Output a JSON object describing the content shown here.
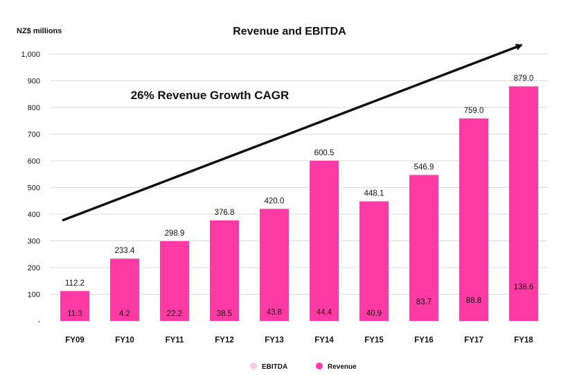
{
  "chart_data": {
    "type": "bar",
    "title": "Revenue and EBITDA",
    "unit_label": "NZ$ millions",
    "annotation": "26% Revenue Growth CAGR",
    "categories": [
      "FY09",
      "FY10",
      "FY11",
      "FY12",
      "FY13",
      "FY14",
      "FY15",
      "FY16",
      "FY17",
      "FY18"
    ],
    "ylim": [
      0,
      1000
    ],
    "yticks": [
      {
        "value": 0,
        "label": "-"
      },
      {
        "value": 100,
        "label": "100"
      },
      {
        "value": 200,
        "label": "200"
      },
      {
        "value": 300,
        "label": "300"
      },
      {
        "value": 400,
        "label": "400"
      },
      {
        "value": 500,
        "label": "500"
      },
      {
        "value": 600,
        "label": "600"
      },
      {
        "value": 700,
        "label": "700"
      },
      {
        "value": 800,
        "label": "800"
      },
      {
        "value": 900,
        "label": "900"
      },
      {
        "value": 1000,
        "label": "1,000"
      }
    ],
    "grid": true,
    "legend_position": "bottom",
    "series": [
      {
        "name": "Revenue",
        "color": "#ff3aa5",
        "values": [
          112.2,
          233.4,
          298.9,
          376.8,
          420.0,
          600.5,
          448.1,
          546.9,
          759.0,
          879.0
        ],
        "labels": [
          "112.2",
          "233.4",
          "298.9",
          "376.8",
          "420.0",
          "600.5",
          "448.1",
          "546.9",
          "759.0",
          "879.0"
        ]
      },
      {
        "name": "EBITDA",
        "color": "#ffc9e6",
        "values": [
          11.3,
          4.2,
          22.2,
          38.5,
          43.8,
          44.4,
          40.9,
          83.7,
          88.8,
          138.6
        ],
        "labels": [
          "11.3",
          "4.2",
          "22.2",
          "38.5",
          "43.8",
          "44.4",
          "40.9",
          "83.7",
          "88.8",
          "138.6"
        ]
      }
    ]
  }
}
